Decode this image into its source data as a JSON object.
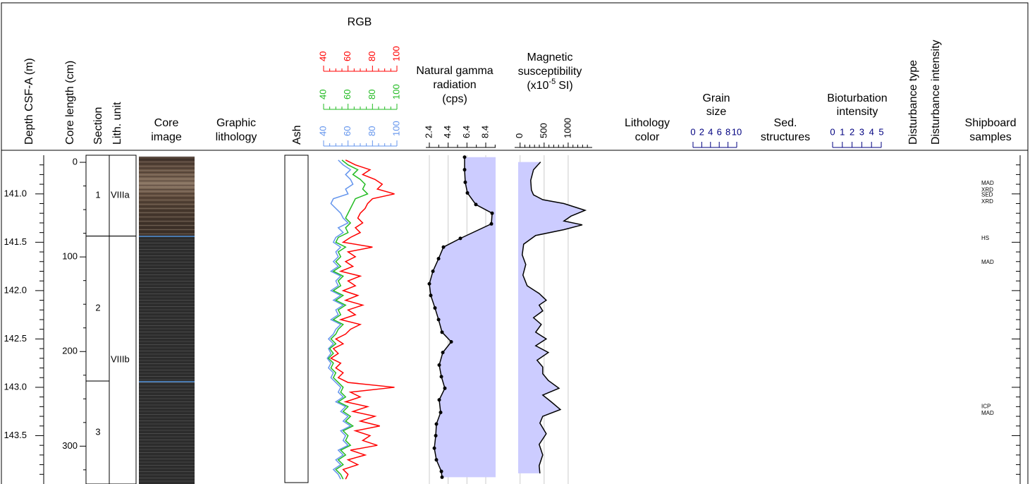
{
  "chart_data": {
    "type": "core-log",
    "depth": {
      "title": "Depth CSF-A (m)",
      "ylim": [
        140.6,
        144.0
      ],
      "yticks": [
        {
          "value": 141,
          "label": "141.0"
        },
        {
          "value": 141.5,
          "label": "141.5"
        },
        {
          "value": 142,
          "label": "142.0"
        },
        {
          "value": 142.5,
          "label": "142.5"
        },
        {
          "value": 143,
          "label": "143.0"
        },
        {
          "value": 143.5,
          "label": "143.5"
        }
      ],
      "minor_yticks": [
        140.7,
        140.8,
        140.9,
        141.1,
        141.2,
        141.3,
        141.4,
        141.6,
        141.7,
        141.8,
        141.9,
        142.1,
        142.2,
        142.3,
        142.4,
        142.6,
        142.7,
        142.8,
        142.9,
        143.1,
        143.2,
        143.3,
        143.4,
        143.6,
        143.7,
        143.8,
        143.9
      ]
    },
    "core_length": {
      "title": "Core length (cm)",
      "ylim": [
        -7.5,
        340
      ],
      "yticks": [
        0,
        100,
        200,
        300
      ],
      "minor_yticks": [
        25,
        50,
        75,
        125,
        150,
        175,
        225,
        250,
        275,
        325
      ]
    },
    "sections": {
      "title": "Section",
      "labels": [
        "1",
        "2",
        "3"
      ],
      "tops": [
        140.6,
        141.436,
        142.935
      ],
      "bottoms": [
        141.436,
        142.935,
        144.0
      ]
    },
    "lith_units": {
      "title": "Lith. unit",
      "labels": [
        "VIIIa",
        "VIIIb"
      ],
      "tops": [
        140.6,
        141.436
      ],
      "bottoms": [
        141.436,
        144.0
      ]
    },
    "core_image": {
      "title": [
        "Core",
        "image"
      ]
    },
    "graphic_lithology": {
      "title": [
        "Graphic",
        "lithology"
      ]
    },
    "ash": {
      "title": "Ash"
    },
    "rgb": {
      "title": "RGB",
      "depths": [
        140.65,
        140.7,
        140.75,
        140.8,
        140.85,
        140.9,
        140.95,
        141.0,
        141.05,
        141.1,
        141.15,
        141.2,
        141.25,
        141.3,
        141.35,
        141.4,
        141.45,
        141.5,
        141.55,
        141.6,
        141.65,
        141.7,
        141.75,
        141.8,
        141.85,
        141.9,
        141.95,
        142.0,
        142.05,
        142.1,
        142.15,
        142.2,
        142.25,
        142.3,
        142.35,
        142.4,
        142.45,
        142.5,
        142.55,
        142.6,
        142.65,
        142.7,
        142.75,
        142.8,
        142.85,
        142.9,
        142.95,
        143.0,
        143.05,
        143.1,
        143.15,
        143.2,
        143.25,
        143.3,
        143.35,
        143.4,
        143.45,
        143.5,
        143.55,
        143.6,
        143.65,
        143.7,
        143.75,
        143.8,
        143.85,
        143.9,
        143.95
      ],
      "series": [
        {
          "color": "#6495ed",
          "xlim": [
            40,
            100
          ],
          "xticks": [
            40,
            60,
            80,
            100
          ],
          "minor_xticks": [
            45,
            50,
            55,
            65,
            70,
            75,
            85,
            90,
            95
          ],
          "values": [
            52,
            56,
            62,
            58,
            62,
            64,
            58,
            60,
            48,
            46,
            50,
            54,
            56,
            60,
            52,
            56,
            50,
            48,
            54,
            50,
            52,
            48,
            52,
            46,
            54,
            50,
            52,
            46,
            54,
            48,
            56,
            50,
            52,
            46,
            54,
            50,
            48,
            44,
            48,
            44,
            46,
            43,
            46,
            44,
            48,
            46,
            50,
            54,
            52,
            56,
            50,
            58,
            54,
            60,
            56,
            62,
            54,
            58,
            56,
            60,
            52,
            56,
            50,
            54,
            48,
            52,
            54
          ]
        },
        {
          "color": "#22bb22",
          "xlim": [
            40,
            100
          ],
          "xticks": [
            40,
            60,
            80,
            100
          ],
          "minor_xticks": [
            45,
            50,
            55,
            65,
            70,
            75,
            85,
            90,
            95
          ],
          "values": [
            55,
            60,
            68,
            64,
            70,
            74,
            72,
            76,
            66,
            64,
            62,
            60,
            58,
            62,
            58,
            60,
            52,
            50,
            58,
            52,
            54,
            50,
            54,
            48,
            56,
            52,
            54,
            48,
            56,
            50,
            58,
            52,
            54,
            48,
            56,
            52,
            50,
            46,
            50,
            45,
            48,
            44,
            48,
            46,
            50,
            48,
            52,
            56,
            54,
            58,
            52,
            60,
            56,
            62,
            58,
            64,
            56,
            60,
            58,
            62,
            54,
            58,
            52,
            56,
            50,
            54,
            56
          ]
        },
        {
          "color": "#ff0000",
          "xlim": [
            40,
            100
          ],
          "xticks": [
            40,
            60,
            80,
            100
          ],
          "minor_xticks": [
            45,
            50,
            55,
            65,
            70,
            75,
            85,
            90,
            95
          ],
          "values": [
            58,
            66,
            78,
            72,
            82,
            88,
            84,
            98,
            80,
            76,
            74,
            70,
            68,
            72,
            66,
            70,
            62,
            56,
            80,
            60,
            66,
            58,
            64,
            54,
            70,
            60,
            66,
            56,
            68,
            58,
            72,
            60,
            66,
            54,
            70,
            62,
            58,
            50,
            56,
            48,
            52,
            46,
            54,
            50,
            56,
            52,
            60,
            98,
            62,
            70,
            58,
            76,
            64,
            82,
            70,
            86,
            66,
            78,
            72,
            84,
            62,
            74,
            60,
            68,
            56,
            60,
            58
          ]
        }
      ]
    },
    "gamma": {
      "title": [
        "Natural gamma",
        "radiation",
        "(cps)"
      ],
      "color": "#ccccff",
      "grid": true,
      "xlim": [
        2.4,
        9.45
      ],
      "xticks": [
        2.4,
        4.4,
        6.4,
        8.4
      ],
      "minor_xticks": [
        3.4,
        5.4,
        7.4,
        9.4
      ],
      "depths": [
        140.62,
        140.75,
        140.88,
        140.99,
        141.11,
        141.2,
        141.31,
        141.46,
        141.55,
        141.67,
        141.8,
        141.93,
        142.05,
        142.18,
        142.3,
        142.43,
        142.53,
        142.64,
        142.77,
        142.89,
        143.01,
        143.13,
        143.26,
        143.38,
        143.5,
        143.63,
        143.75,
        143.87,
        143.93
      ],
      "values": [
        6.15,
        6.15,
        6.22,
        6.45,
        7.35,
        9.08,
        9.0,
        5.7,
        3.9,
        3.38,
        2.78,
        2.4,
        2.55,
        3.0,
        3.38,
        3.75,
        4.73,
        3.83,
        3.45,
        3.68,
        4.05,
        3.45,
        3.6,
        3.15,
        3.08,
        2.93,
        3.15,
        3.68,
        3.75
      ]
    },
    "magsus": {
      "title": [
        "Magnetic",
        "susceptibility"
      ],
      "unit": [
        "(x10",
        "-5",
        "SI)"
      ],
      "color": "#ccccff",
      "grid": true,
      "xlim": [
        -40,
        1500
      ],
      "xticks": [
        0,
        500,
        1000
      ],
      "minor_xticks": [
        100,
        200,
        300,
        400,
        600,
        700,
        800,
        900,
        1100,
        1200,
        1300,
        1400
      ],
      "depths": [
        140.67,
        140.75,
        140.86,
        140.96,
        141.01,
        141.06,
        141.1,
        141.17,
        141.23,
        141.28,
        141.32,
        141.37,
        141.43,
        141.52,
        141.63,
        141.73,
        141.84,
        141.95,
        142.03,
        142.1,
        142.15,
        142.21,
        142.28,
        142.35,
        142.43,
        142.5,
        142.57,
        142.64,
        142.72,
        142.79,
        142.86,
        142.93,
        143.01,
        143.08,
        143.15,
        143.23,
        143.3,
        143.37,
        143.48,
        143.59,
        143.7,
        143.81,
        143.89
      ],
      "values": [
        426,
        279,
        221,
        235,
        279,
        471,
        912,
        1353,
        1059,
        912,
        1294,
        912,
        324,
        74,
        44,
        118,
        59,
        147,
        397,
        544,
        397,
        471,
        279,
        441,
        324,
        544,
        324,
        588,
        353,
        471,
        471,
        588,
        809,
        471,
        647,
        838,
        471,
        412,
        544,
        397,
        471,
        397,
        412
      ]
    },
    "lithology_color": {
      "title": [
        "Lithology",
        "color"
      ]
    },
    "grain_size": {
      "title": [
        "Grain",
        "size"
      ],
      "color": "#000080",
      "xlim": [
        0,
        10
      ],
      "xticks": [
        0,
        2,
        4,
        6,
        8,
        10
      ]
    },
    "sed_structures": {
      "title": [
        "Sed.",
        "structures"
      ]
    },
    "bioturbation": {
      "title": [
        "Bioturbation",
        "intensity"
      ],
      "color": "#000080",
      "xlim": [
        0,
        5
      ],
      "xticks": [
        0,
        1,
        2,
        3,
        4,
        5
      ]
    },
    "disturbance_type": {
      "title": "Disturbance type"
    },
    "disturbance_intensity": {
      "title": "Disturbance intensity"
    },
    "samples": {
      "title": [
        "Shipboard",
        "samples"
      ],
      "labels": [
        "MAD",
        "XRD",
        "SED",
        "XRD",
        "HS",
        "MAD",
        "ICP",
        "MAD"
      ],
      "depths": [
        140.89,
        140.96,
        141.01,
        141.08,
        141.46,
        141.71,
        143.2,
        143.27
      ]
    }
  }
}
